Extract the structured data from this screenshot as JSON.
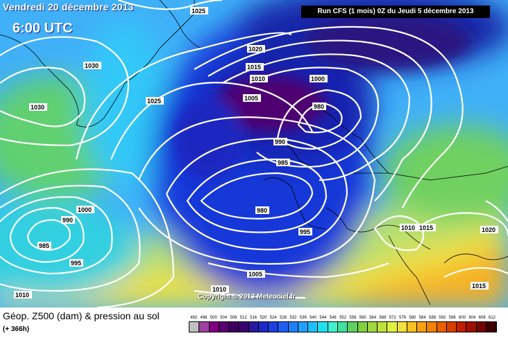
{
  "header": {
    "date": "Vendredi 20 décembre 2013",
    "time": "6:00 UTC",
    "run": "Run CFS (1 mois) 0Z du Jeudi 5 décembre 2013"
  },
  "copyright": "Copyright © 2013 Meteociel.fr",
  "footer": {
    "product": "Géop. Z500 (dam) & pression au sol",
    "lead_time": "(+ 366h)"
  },
  "isobar_labels": [
    "1025",
    "1030",
    "1030",
    "1025",
    "1020",
    "1015",
    "1010",
    "1005",
    "1000",
    "980",
    "990",
    "985",
    "980",
    "995",
    "1000",
    "990",
    "985",
    "995",
    "1005",
    "1010",
    "1010",
    "1010",
    "1015",
    "1020",
    "1015"
  ],
  "legend": {
    "ticks": [
      "492",
      "496",
      "500",
      "504",
      "508",
      "512",
      "516",
      "520",
      "524",
      "528",
      "532",
      "536",
      "540",
      "544",
      "548",
      "552",
      "556",
      "560",
      "564",
      "568",
      "572",
      "576",
      "580",
      "584",
      "588",
      "592",
      "596",
      "600",
      "604",
      "608",
      "612"
    ],
    "colors": [
      "#c0c0c0",
      "#a040a0",
      "#800080",
      "#5a0070",
      "#400060",
      "#3a006e",
      "#2a1aa0",
      "#1e28c8",
      "#1e40e0",
      "#1e60f0",
      "#2080f8",
      "#20a0ff",
      "#20c0ff",
      "#20e0f0",
      "#40f0d0",
      "#40e0a0",
      "#60d060",
      "#80d040",
      "#a0d840",
      "#c0e040",
      "#e0f040",
      "#f0e040",
      "#f8c020",
      "#f8a010",
      "#f08000",
      "#e86000",
      "#d84000",
      "#c02000",
      "#a01000",
      "#700800",
      "#400000"
    ]
  }
}
